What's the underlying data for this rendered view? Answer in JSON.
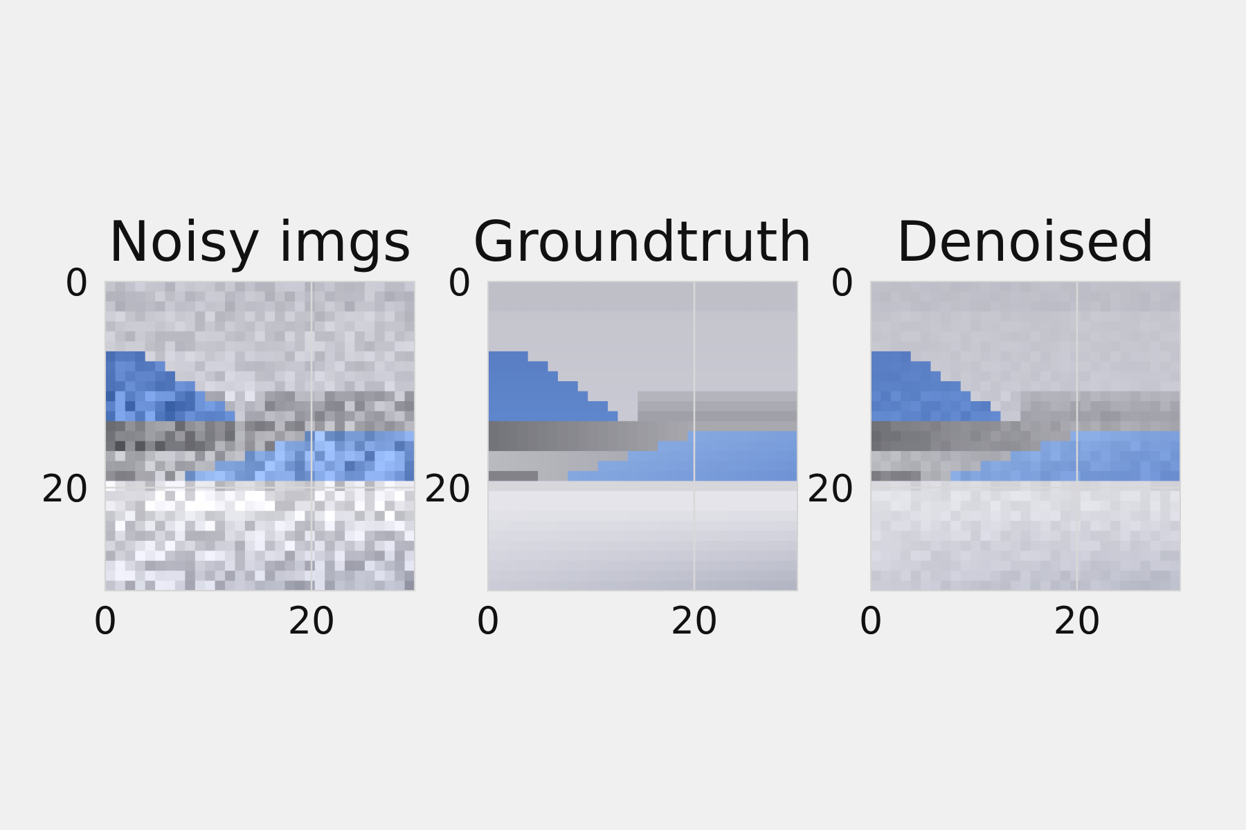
{
  "chart_data": [
    {
      "type": "heatmap",
      "title": "Noisy imgs",
      "image_size": [
        31,
        31
      ],
      "xticks": [
        0,
        20
      ],
      "yticks": [
        0,
        20
      ],
      "grid": true,
      "noise": "high",
      "content": "32x32 RGB photo patch: grey-lavender sky, blue wedge on left, blue band on right, grey ground, light bottom"
    },
    {
      "type": "heatmap",
      "title": "Groundtruth",
      "image_size": [
        31,
        31
      ],
      "xticks": [
        0,
        20
      ],
      "yticks": [
        0,
        20
      ],
      "grid": true,
      "noise": "none",
      "content": "32x32 RGB photo patch: grey-lavender sky, blue wedge on left, blue band on right, grey ground, light bottom"
    },
    {
      "type": "heatmap",
      "title": "Denoised",
      "image_size": [
        31,
        31
      ],
      "xticks": [
        0,
        20
      ],
      "yticks": [
        0,
        20
      ],
      "grid": true,
      "noise": "low",
      "content": "32x32 RGB photo patch: grey-lavender sky, blue wedge on left, blue band on right, grey ground, light bottom"
    }
  ],
  "colors": {
    "background": "#f0f0f0",
    "grid": "#d8d8d8",
    "sky": "#c4c4cc",
    "blue_wedge": "#5a7ec4",
    "blue_band": "#86a8e0",
    "grey_ground": "#a8a8ae",
    "light_ground": "#e4e4ea"
  }
}
